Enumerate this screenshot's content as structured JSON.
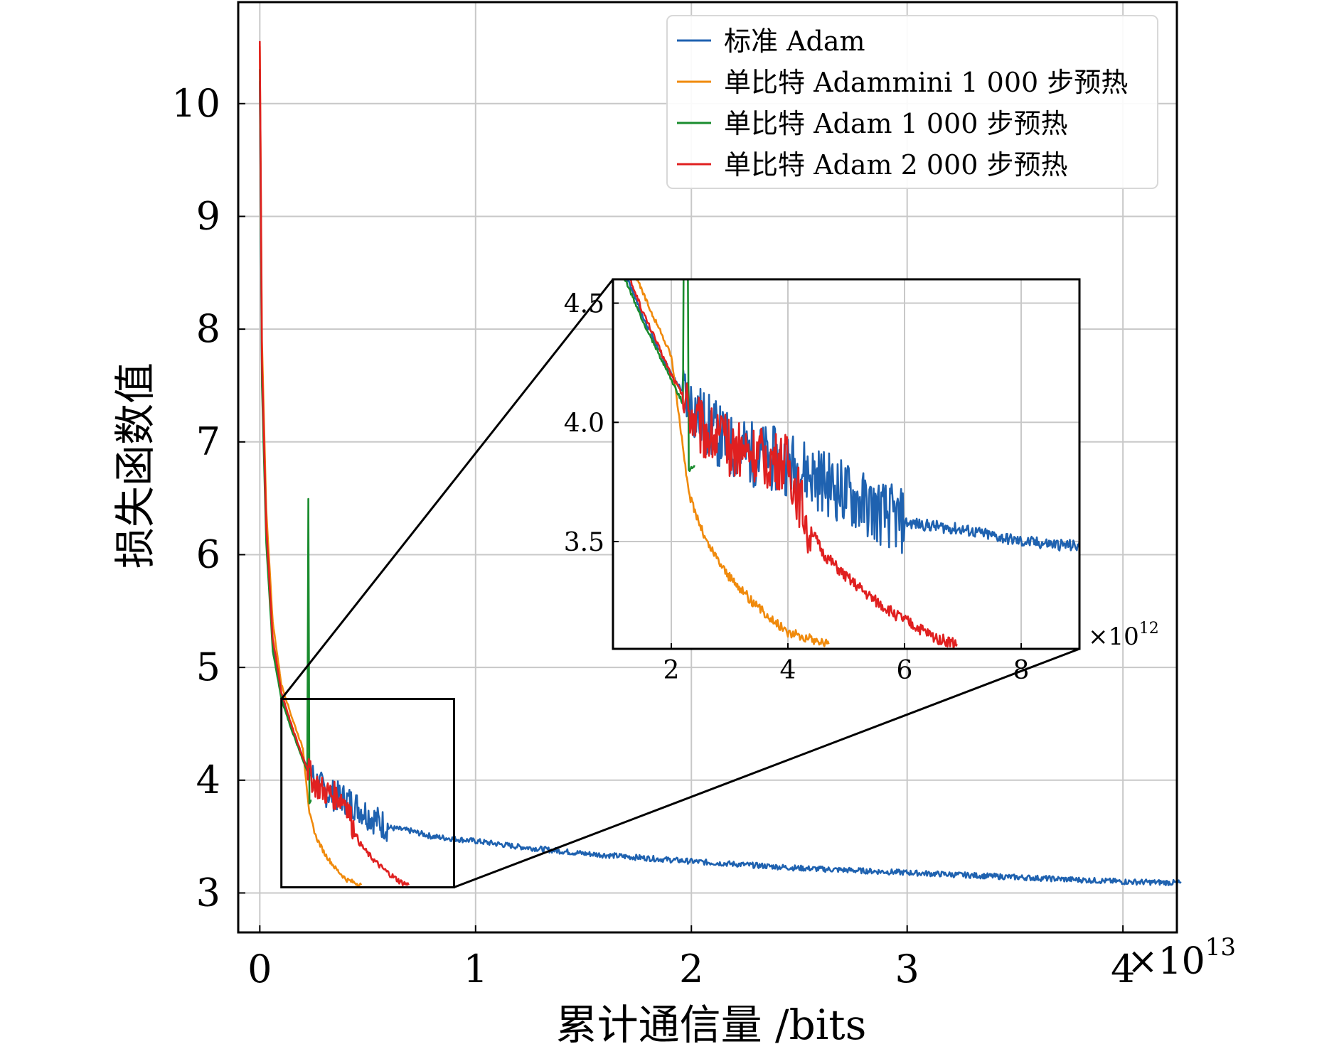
{
  "chart_data": {
    "type": "line",
    "xlabel": "累计通信量 /bits",
    "ylabel": "损失函数值",
    "x_multiplier": "×10",
    "x_exponent": "13",
    "xlim": [
      -0.1,
      4.25
    ],
    "ylim": [
      2.65,
      10.9
    ],
    "xticks": [
      0,
      1,
      2,
      3,
      4
    ],
    "xtick_labels": [
      "0",
      "1",
      "2",
      "3",
      "4"
    ],
    "yticks": [
      3,
      4,
      5,
      6,
      7,
      8,
      9,
      10
    ],
    "ytick_labels": [
      "3",
      "4",
      "5",
      "6",
      "7",
      "8",
      "9",
      "10"
    ],
    "grid": true,
    "legend_position": "top-right",
    "colors": {
      "adam": "#1f62b0",
      "adammini_1000": "#f08a0c",
      "adam_1000": "#1a8c2e",
      "adam_2000": "#e02020",
      "grid": "#c8c8c8",
      "axis": "#000000"
    },
    "series": [
      {
        "key": "adam",
        "name": "标准 Adam",
        "color": "#1f62b0",
        "x": [
          0.0,
          0.01,
          0.03,
          0.06,
          0.1,
          0.15,
          0.2,
          0.25,
          0.3,
          0.35,
          0.4,
          0.45,
          0.5,
          0.55,
          0.6,
          0.7,
          0.8,
          1.0,
          1.2,
          1.5,
          2.0,
          2.5,
          3.0,
          3.5,
          4.0,
          4.27
        ],
        "y": [
          10.2,
          7.6,
          6.2,
          5.2,
          4.75,
          4.45,
          4.2,
          4.02,
          3.9,
          3.86,
          3.83,
          3.77,
          3.7,
          3.63,
          3.58,
          3.55,
          3.5,
          3.46,
          3.41,
          3.35,
          3.28,
          3.22,
          3.18,
          3.14,
          3.1,
          3.09
        ]
      },
      {
        "key": "adammini_1000",
        "name": "单比特 Adammini 1 000 步预热",
        "color": "#f08a0c",
        "x": [
          0.0,
          0.01,
          0.03,
          0.06,
          0.1,
          0.15,
          0.2,
          0.23,
          0.26,
          0.3,
          0.35,
          0.4,
          0.47
        ],
        "y": [
          10.5,
          7.9,
          6.4,
          5.4,
          4.85,
          4.55,
          4.28,
          3.7,
          3.5,
          3.35,
          3.22,
          3.12,
          3.07
        ]
      },
      {
        "key": "adam_1000",
        "name": "单比特 Adam 1 000 步预热",
        "color": "#1a8c2e",
        "x": [
          0.0,
          0.01,
          0.03,
          0.06,
          0.1,
          0.15,
          0.2,
          0.22,
          0.225,
          0.23,
          0.24
        ],
        "y": [
          10.3,
          7.5,
          6.1,
          5.15,
          4.72,
          4.43,
          4.18,
          4.08,
          6.5,
          3.8,
          3.82
        ]
      },
      {
        "key": "adam_2000",
        "name": "单比特 Adam 2 000 步预热",
        "color": "#e02020",
        "x": [
          0.0,
          0.01,
          0.03,
          0.06,
          0.1,
          0.15,
          0.2,
          0.25,
          0.3,
          0.35,
          0.4,
          0.43,
          0.46,
          0.5,
          0.55,
          0.6,
          0.65,
          0.69
        ],
        "y": [
          10.55,
          7.7,
          6.25,
          5.25,
          4.78,
          4.47,
          4.2,
          3.98,
          3.9,
          3.86,
          3.82,
          3.6,
          3.45,
          3.35,
          3.25,
          3.17,
          3.1,
          3.07
        ]
      }
    ],
    "inset": {
      "x_multiplier": "×10",
      "x_exponent": "12",
      "xlim": [
        1.0,
        9.0
      ],
      "ylim": [
        3.05,
        4.6
      ],
      "xticks": [
        2,
        4,
        6,
        8
      ],
      "xtick_labels": [
        "2",
        "4",
        "6",
        "8"
      ],
      "yticks": [
        3.5,
        4.0,
        4.5
      ],
      "ytick_labels": [
        "3.5",
        "4.0",
        "4.5"
      ],
      "zoom_region": {
        "x": [
          0.1,
          0.9
        ],
        "y": [
          3.05,
          4.72
        ]
      }
    }
  }
}
